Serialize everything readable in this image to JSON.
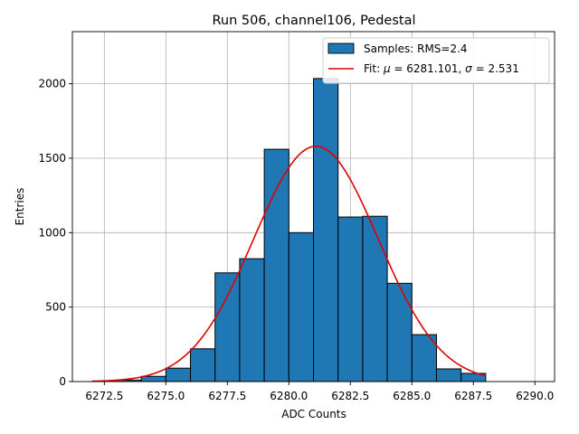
{
  "chart_data": {
    "type": "bar",
    "title": "Run 506, channel106, Pedestal",
    "xlabel": "ADC Counts",
    "ylabel": "Entries",
    "xlim": [
      6271.2,
      6290.8
    ],
    "ylim": [
      0,
      2350
    ],
    "grid": true,
    "legend_position": "top-right",
    "xticks": [
      6272.5,
      6275.0,
      6277.5,
      6280.0,
      6282.5,
      6285.0,
      6287.5,
      6290.0
    ],
    "xtick_labels": [
      "6272.5",
      "6275.0",
      "6277.5",
      "6280.0",
      "6282.5",
      "6285.0",
      "6287.5",
      "6290.0"
    ],
    "yticks": [
      0,
      500,
      1000,
      1500,
      2000
    ],
    "ytick_labels": [
      "0",
      "500",
      "1000",
      "1500",
      "2000"
    ],
    "histogram": {
      "legend_label": "Samples: RMS=2.4",
      "color": "#1f77b4",
      "edge_color": "#000000",
      "bins": [
        {
          "x0": 6273,
          "x1": 6274,
          "value": 10
        },
        {
          "x0": 6274,
          "x1": 6275,
          "value": 35
        },
        {
          "x0": 6275,
          "x1": 6276,
          "value": 90
        },
        {
          "x0": 6276,
          "x1": 6277,
          "value": 220
        },
        {
          "x0": 6277,
          "x1": 6278,
          "value": 730
        },
        {
          "x0": 6278,
          "x1": 6279,
          "value": 825
        },
        {
          "x0": 6279,
          "x1": 6280,
          "value": 1560
        },
        {
          "x0": 6280,
          "x1": 6281,
          "value": 1000
        },
        {
          "x0": 6281,
          "x1": 6282,
          "value": 2035
        },
        {
          "x0": 6282,
          "x1": 6283,
          "value": 1105
        },
        {
          "x0": 6283,
          "x1": 6284,
          "value": 1110
        },
        {
          "x0": 6284,
          "x1": 6285,
          "value": 660
        },
        {
          "x0": 6285,
          "x1": 6286,
          "value": 315
        },
        {
          "x0": 6286,
          "x1": 6287,
          "value": 85
        },
        {
          "x0": 6287,
          "x1": 6288,
          "value": 55
        }
      ]
    },
    "fit": {
      "legend_label_prefix": "Fit: ",
      "mu_symbol": "μ",
      "mu_value": "6281.101",
      "sigma_symbol": "σ",
      "sigma_value": "2.531",
      "color": "#e00000",
      "mu": 6281.101,
      "sigma": 2.531,
      "amplitude": 1580,
      "x_range": [
        6272,
        6288
      ]
    }
  }
}
